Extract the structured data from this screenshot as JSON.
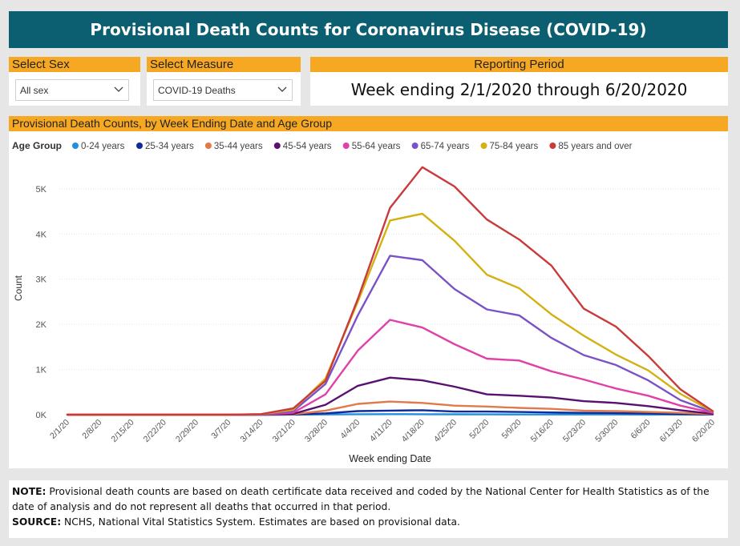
{
  "header": {
    "title": "Provisional Death Counts for Coronavirus Disease (COVID-19)"
  },
  "filters": {
    "sex": {
      "label": "Select Sex",
      "value": "All sex"
    },
    "measure": {
      "label": "Select Measure",
      "value": "COVID-19 Deaths"
    },
    "period": {
      "label": "Reporting Period",
      "value": "Week ending 2/1/2020 through 6/20/2020"
    }
  },
  "colors": {
    "header_bg": "#0c5f70",
    "accent": "#f7a823"
  },
  "note": {
    "note_label": "NOTE:",
    "note_text": "Provisional death counts are based on death certificate data received and coded by the National Center for Health Statistics as of the date of analysis and do not represent all deaths that occurred in that period.",
    "source_label": "SOURCE:",
    "source_text": "NCHS, National Vital Statistics System. Estimates are based on provisional data."
  },
  "chart_data": {
    "type": "line",
    "title": "Provisional Death Counts, by Week Ending Date and Age Group",
    "legend_title": "Age Group",
    "legend_position": "top-left",
    "xlabel": "Week ending Date",
    "ylabel": "Count",
    "ylim": [
      0,
      5600
    ],
    "yticks": [
      0,
      1000,
      2000,
      3000,
      4000,
      5000
    ],
    "ytick_labels": [
      "0K",
      "1K",
      "2K",
      "3K",
      "4K",
      "5K"
    ],
    "grid": true,
    "x": [
      "2/1/20",
      "2/8/20",
      "2/15/20",
      "2/22/20",
      "2/29/20",
      "3/7/20",
      "3/14/20",
      "3/21/20",
      "3/28/20",
      "4/4/20",
      "4/11/20",
      "4/18/20",
      "4/25/20",
      "5/2/20",
      "5/9/20",
      "5/16/20",
      "5/23/20",
      "5/30/20",
      "6/6/20",
      "6/13/20",
      "6/20/20"
    ],
    "series": [
      {
        "name": "0-24 years",
        "color": "#1f8fe0",
        "values": [
          0,
          0,
          0,
          0,
          0,
          0,
          0,
          1,
          5,
          10,
          12,
          10,
          8,
          7,
          6,
          6,
          5,
          5,
          4,
          3,
          1
        ]
      },
      {
        "name": "25-34 years",
        "color": "#102a9a",
        "values": [
          0,
          0,
          0,
          0,
          0,
          0,
          0,
          3,
          30,
          80,
          90,
          100,
          70,
          70,
          60,
          50,
          40,
          35,
          28,
          15,
          5
        ]
      },
      {
        "name": "35-44 years",
        "color": "#e07a4a",
        "values": [
          0,
          0,
          0,
          0,
          0,
          0,
          2,
          10,
          90,
          240,
          290,
          260,
          200,
          180,
          150,
          130,
          90,
          80,
          60,
          40,
          10
        ]
      },
      {
        "name": "45-54 years",
        "color": "#5a1070",
        "values": [
          0,
          0,
          0,
          0,
          0,
          0,
          3,
          20,
          220,
          640,
          820,
          760,
          620,
          450,
          420,
          380,
          300,
          260,
          190,
          100,
          20
        ]
      },
      {
        "name": "55-64 years",
        "color": "#e040a8",
        "values": [
          0,
          0,
          0,
          0,
          0,
          0,
          5,
          45,
          450,
          1420,
          2100,
          1930,
          1560,
          1240,
          1200,
          960,
          780,
          580,
          420,
          200,
          40
        ]
      },
      {
        "name": "65-74 years",
        "color": "#7a52c8",
        "values": [
          0,
          0,
          0,
          0,
          0,
          0,
          8,
          80,
          680,
          2200,
          3520,
          3420,
          2780,
          2330,
          2200,
          1700,
          1320,
          1100,
          760,
          320,
          60
        ]
      },
      {
        "name": "75-84 years",
        "color": "#d4b012",
        "values": [
          0,
          0,
          0,
          0,
          0,
          0,
          10,
          110,
          800,
          2500,
          4300,
          4450,
          3850,
          3100,
          2800,
          2220,
          1750,
          1330,
          980,
          460,
          70
        ]
      },
      {
        "name": "85 years and over",
        "color": "#c93a3a",
        "values": [
          0,
          0,
          0,
          0,
          0,
          0,
          12,
          140,
          750,
          2560,
          4580,
          5480,
          5050,
          4320,
          3880,
          3300,
          2350,
          1950,
          1300,
          560,
          80
        ]
      }
    ]
  }
}
